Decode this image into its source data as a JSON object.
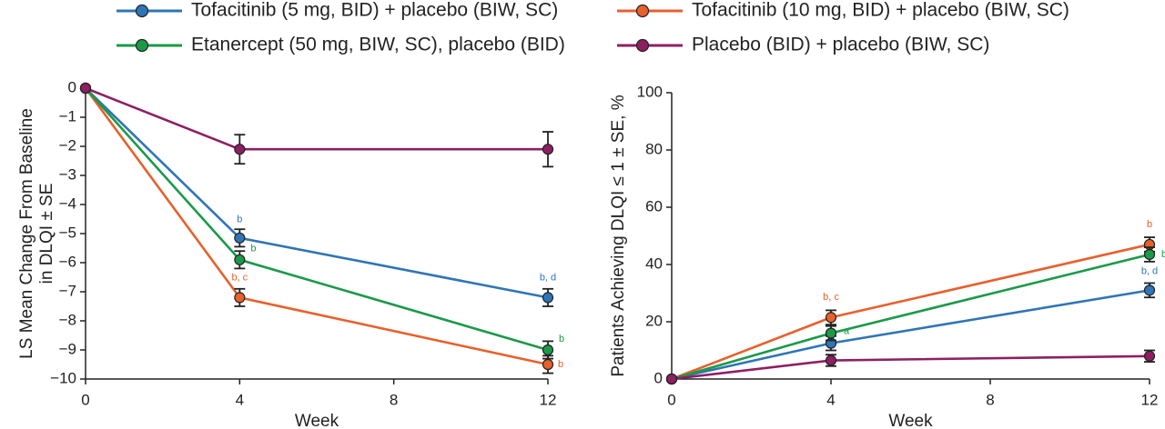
{
  "chart_data": [
    {
      "type": "line",
      "x": [
        0,
        4,
        12
      ],
      "xlim": [
        0,
        12
      ],
      "xticks": [
        0,
        4,
        8,
        12
      ],
      "xlabel": "Week",
      "ylabel": [
        "LS Mean Change From Baseline",
        "in DLQI ± SE"
      ],
      "ylim": [
        -10,
        0
      ],
      "yticks": [
        {
          "value": 0,
          "label": "0"
        },
        {
          "value": -1,
          "label": "−1"
        },
        {
          "value": -2,
          "label": "−2"
        },
        {
          "value": -3,
          "label": "−3"
        },
        {
          "value": -4,
          "label": "−4"
        },
        {
          "value": -5,
          "label": "−5"
        },
        {
          "value": -6,
          "label": "−6"
        },
        {
          "value": -7,
          "label": "−7"
        },
        {
          "value": -8,
          "label": "−8"
        },
        {
          "value": -9,
          "label": "−9"
        },
        {
          "value": -10,
          "label": "−10"
        }
      ],
      "series": [
        {
          "name": "Tofacitinib (5 mg, BID) + placebo (BIW, SC)",
          "color": "#2e75b6",
          "values": [
            0,
            -5.15,
            -7.2
          ],
          "errors": [
            null,
            0.3,
            0.3
          ],
          "point_labels": [
            null,
            "b",
            "b, d"
          ]
        },
        {
          "name": "Tofacitinib (10 mg, BID) + placebo (BIW, SC)",
          "color": "#e8602c",
          "values": [
            0,
            -7.2,
            -9.5
          ],
          "errors": [
            null,
            0.3,
            0.3
          ],
          "point_labels": [
            null,
            "b, c",
            "b"
          ]
        },
        {
          "name": "Etanercept (50 mg, BIW, SC), placebo (BID)",
          "color": "#1a9a48",
          "values": [
            0,
            -5.9,
            -9.0
          ],
          "errors": [
            null,
            0.3,
            0.3
          ],
          "point_labels": [
            null,
            "b",
            "b"
          ]
        },
        {
          "name": "Placebo (BID) + placebo (BIW, SC)",
          "color": "#8e1f63",
          "values": [
            0,
            -2.1,
            -2.1
          ],
          "errors": [
            null,
            0.5,
            0.6
          ],
          "point_labels": [
            null,
            null,
            null
          ]
        }
      ]
    },
    {
      "type": "line",
      "x": [
        0,
        4,
        12
      ],
      "xlim": [
        0,
        12
      ],
      "xticks": [
        0,
        4,
        8,
        12
      ],
      "xlabel": "Week",
      "ylabel": [
        "Patients Achieving DLQI ≤ 1 ± SE, %"
      ],
      "ylim": [
        0,
        100
      ],
      "yticks": [
        0,
        20,
        40,
        60,
        80,
        100
      ],
      "series": [
        {
          "color": "#2e75b6",
          "values": [
            0,
            12.5,
            31
          ],
          "errors": [
            null,
            2.5,
            2.5
          ],
          "point_labels": [
            null,
            null,
            "b, d"
          ]
        },
        {
          "color": "#e8602c",
          "values": [
            0,
            21.5,
            47
          ],
          "errors": [
            null,
            2.5,
            2.5
          ],
          "point_labels": [
            null,
            "b, c",
            "b"
          ]
        },
        {
          "color": "#1a9a48",
          "values": [
            0,
            16,
            43.5
          ],
          "errors": [
            null,
            2.5,
            2.5
          ],
          "point_labels": [
            null,
            "a",
            "b"
          ]
        },
        {
          "color": "#8e1f63",
          "values": [
            0,
            6.5,
            8
          ],
          "errors": [
            null,
            2,
            2
          ],
          "point_labels": [
            null,
            null,
            null
          ]
        }
      ]
    }
  ]
}
